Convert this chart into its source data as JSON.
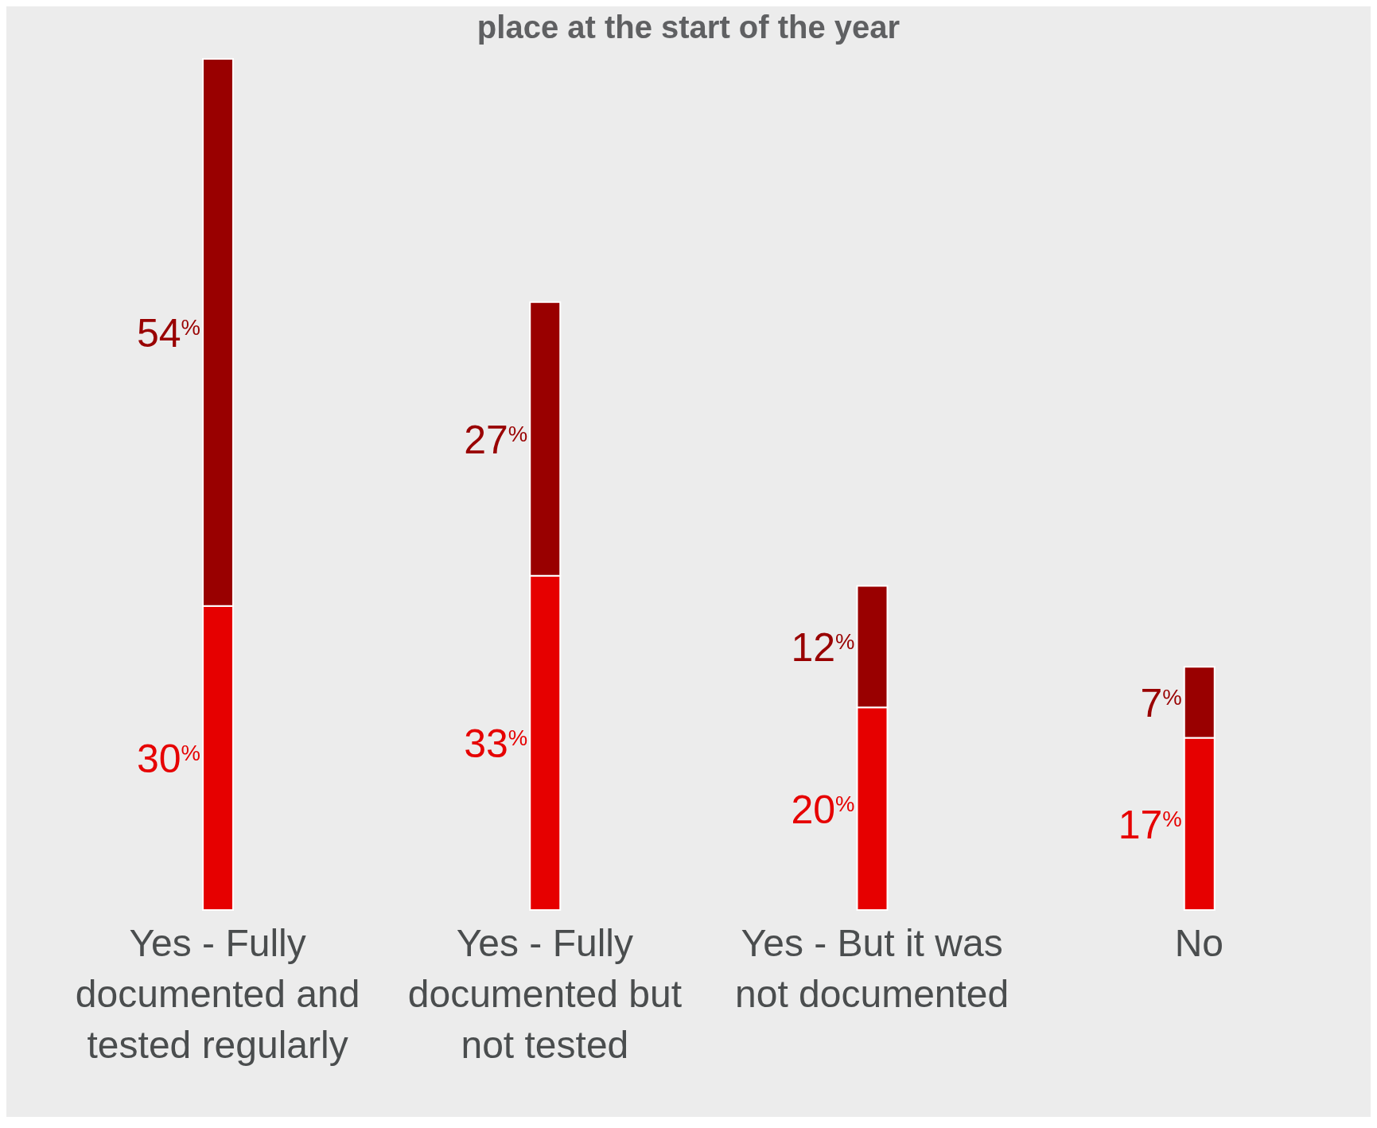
{
  "chart_data": {
    "type": "bar",
    "title": "place at the start of the year",
    "stacked": true,
    "categories": [
      "Yes - Fully documented and tested regularly",
      "Yes - Fully documented but not tested",
      "Yes - But it was not documented",
      "No"
    ],
    "series": [
      {
        "color": "#e60000",
        "values": [
          30,
          33,
          20,
          17
        ],
        "value_labels": [
          "30$^{%}$",
          "33$^{%}$",
          "20$^{%}$",
          "17$^{%}$"
        ]
      },
      {
        "color": "#990000",
        "values": [
          54,
          27,
          12,
          7
        ],
        "value_labels": [
          "54$^{%}$",
          "27$^{%}$",
          "12$^{%}$",
          "7$^{%}$"
        ]
      }
    ]
  }
}
